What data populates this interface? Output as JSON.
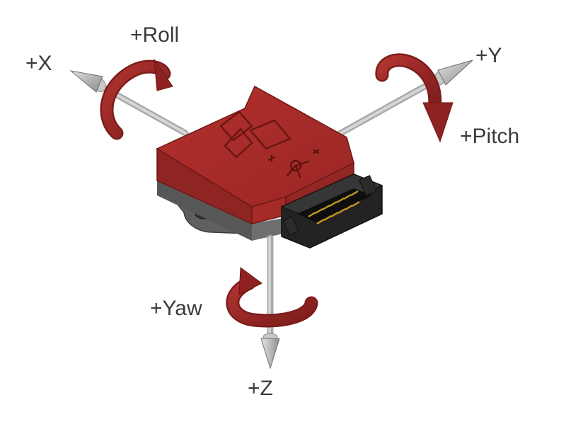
{
  "labels": {
    "x": "+X",
    "y": "+Y",
    "z": "+Z",
    "roll": "+Roll",
    "pitch": "+Pitch",
    "yaw": "+Yaw"
  },
  "colors": {
    "body_red": "#a52a2a",
    "body_red_dark": "#7e1e1c",
    "body_red_light": "#b93430",
    "arrow_red": "#9d2623",
    "shaft_gray": "#b9b9b9",
    "cone_gray": "#9e9e9e",
    "base_gray": "#6d6d6d",
    "connector_black": "#1d1d1d",
    "pin_gold": "#c99a1f",
    "label_text": "#3a3a3a"
  },
  "icons": {
    "logo": "stylized-triangles-logo",
    "axis_marker": "x-y-axis-mark"
  }
}
